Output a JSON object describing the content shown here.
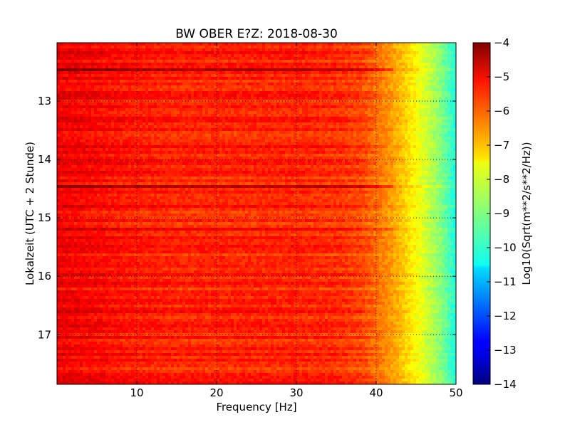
{
  "chart_data": {
    "type": "heatmap",
    "title": "BW OBER E?Z: 2018-08-30",
    "xlabel": "Frequency [Hz]",
    "ylabel": "Lokalzeit (UTC + 2 Stunde)",
    "xlim": [
      0,
      50
    ],
    "ylim": [
      12.0,
      17.85
    ],
    "y_inverted": true,
    "x_ticks": [
      10,
      20,
      30,
      40,
      50
    ],
    "x_tick_labels": [
      "10",
      "20",
      "30",
      "40",
      "50"
    ],
    "y_ticks": [
      13,
      14,
      15,
      16,
      17
    ],
    "y_tick_labels": [
      "13",
      "14",
      "15",
      "16",
      "17"
    ],
    "grid": true,
    "colorbar": {
      "label": "Log10(Sqrt(m**2/s**2/Hz))",
      "range": [
        -14,
        -4
      ],
      "ticks": [
        -4,
        -5,
        -6,
        -7,
        -8,
        -9,
        -10,
        -11,
        -12,
        -13,
        -14
      ],
      "tick_labels": [
        "−4",
        "−5",
        "−6",
        "−7",
        "−8",
        "−9",
        "−10",
        "−11",
        "−12",
        "−13",
        "−14"
      ],
      "colormap": "jet"
    },
    "spectral_profile": {
      "frequency_hz": [
        0,
        5,
        10,
        15,
        20,
        25,
        30,
        35,
        38,
        40,
        42,
        44,
        46,
        48,
        50
      ],
      "log10_amplitude": [
        -5.1,
        -5.3,
        -5.5,
        -5.6,
        -5.6,
        -5.6,
        -5.6,
        -5.7,
        -5.9,
        -6.3,
        -6.8,
        -7.4,
        -8.1,
        -8.9,
        -10.0
      ]
    },
    "horizontal_bands": [
      {
        "time": 12.45,
        "delta": 0.9
      },
      {
        "time": 14.45,
        "delta": 0.9
      },
      {
        "time": 15.2,
        "delta": 0.6
      }
    ]
  }
}
